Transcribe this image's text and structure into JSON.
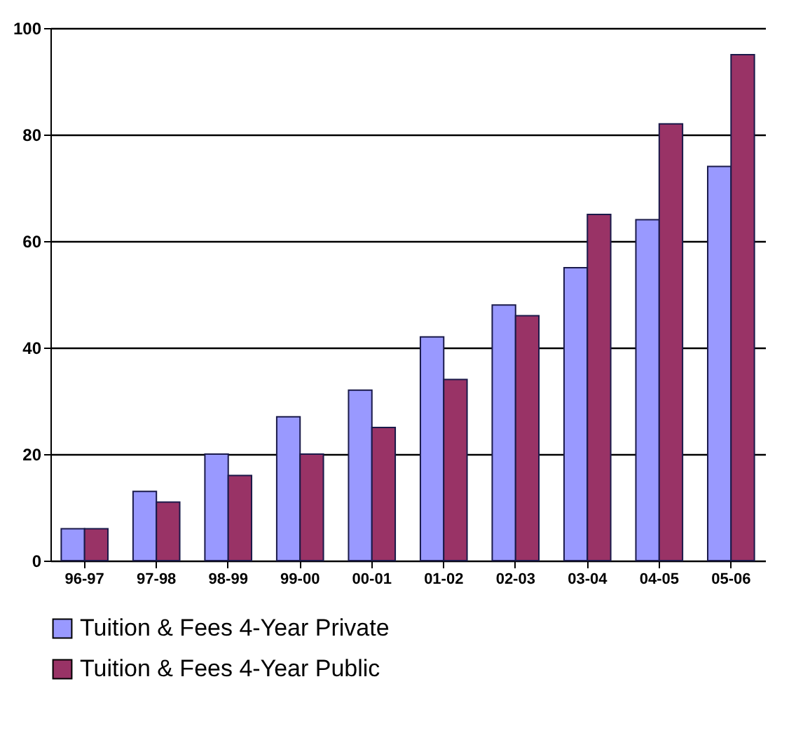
{
  "chart_data": {
    "type": "bar",
    "categories": [
      "96-97",
      "97-98",
      "98-99",
      "99-00",
      "00-01",
      "01-02",
      "02-03",
      "03-04",
      "04-05",
      "05-06"
    ],
    "series": [
      {
        "name": "Tuition & Fees 4-Year Private",
        "color": "#9999ff",
        "values": [
          6,
          13,
          20,
          27,
          32,
          42,
          48,
          55,
          64,
          74
        ]
      },
      {
        "name": "Tuition & Fees 4-Year Public",
        "color": "#993366",
        "values": [
          6,
          11,
          16,
          20,
          25,
          34,
          46,
          65,
          82,
          95
        ]
      }
    ],
    "ylim": [
      0,
      100
    ],
    "yticks": [
      0,
      20,
      40,
      60,
      80,
      100
    ],
    "grid": "y",
    "legend": "bottom"
  }
}
